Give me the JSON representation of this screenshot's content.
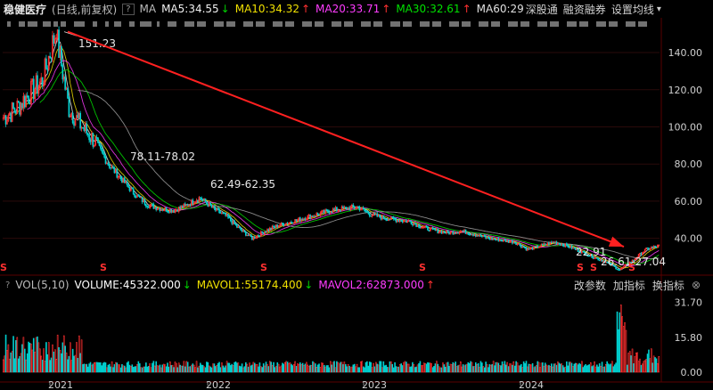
{
  "header": {
    "stock_name": "稳健医疗",
    "mode": "(日线,前复权)",
    "help": "?",
    "ma_label": "MA",
    "ma5": "MA5:34.55",
    "ma10": "MA10:34.32",
    "ma20": "MA20:33.71",
    "ma30": "MA30:32.61",
    "ma60": "MA60:29",
    "link1": "深股通",
    "link2": "融资融券",
    "link3": "设置均线",
    "dropdown": "▾"
  },
  "vol_header": {
    "question": "?",
    "indicator": "VOL(5,10)",
    "volume": "VOLUME:45322.000",
    "mavol1": "MAVOL1:55174.400",
    "mavol2": "MAVOL2:62873.000",
    "btn_params": "改参数",
    "btn_add": "加指标",
    "btn_switch": "换指标",
    "btn_close": "⊗"
  },
  "colors": {
    "background": "#000000",
    "up": "#ff3030",
    "down": "#00d0d0",
    "ma5": "#f0f0f0",
    "ma10": "#f0e000",
    "ma20": "#ff3cff",
    "ma30": "#00e000",
    "ma60": "#a0a0a0",
    "trend_arrow": "#ff2020"
  },
  "chart_data": {
    "type": "candlestick",
    "y_ticks": [
      "140.00",
      "120.00",
      "100.00",
      "80.00",
      "60.00",
      "40.00"
    ],
    "y_tick_values": [
      140,
      120,
      100,
      80,
      60,
      40
    ],
    "ylim": [
      24.5,
      152
    ],
    "x_ticks": [
      "2021",
      "2022",
      "2023",
      "2024"
    ],
    "price_anchors": [
      {
        "label": "2020-09",
        "close": 105
      },
      {
        "label": "2020-10",
        "close": 110
      },
      {
        "label": "2020-11",
        "close": 118
      },
      {
        "label": "2020-12",
        "close": 125
      },
      {
        "label": "2021-01-peak",
        "close": 151.23
      },
      {
        "label": "2021-02",
        "close": 110
      },
      {
        "label": "2021-03",
        "close": 100
      },
      {
        "label": "2021-04",
        "close": 92
      },
      {
        "label": "2021-05",
        "close": 80
      },
      {
        "label": "2021-06",
        "close": 72
      },
      {
        "label": "2021-07",
        "close": 64
      },
      {
        "label": "2021-08",
        "close": 58
      },
      {
        "label": "2021-09",
        "close": 56
      },
      {
        "label": "2021-10",
        "close": 55
      },
      {
        "label": "2021-11",
        "close": 58
      },
      {
        "label": "2021-12",
        "close": 62
      },
      {
        "label": "2022-01",
        "close": 56
      },
      {
        "label": "2022-02",
        "close": 52
      },
      {
        "label": "2022-03",
        "close": 45
      },
      {
        "label": "2022-04",
        "close": 40
      },
      {
        "label": "2022-05",
        "close": 44
      },
      {
        "label": "2022-06",
        "close": 47
      },
      {
        "label": "2022-07",
        "close": 49
      },
      {
        "label": "2022-08",
        "close": 51
      },
      {
        "label": "2022-09",
        "close": 53
      },
      {
        "label": "2022-10",
        "close": 55
      },
      {
        "label": "2022-11",
        "close": 56
      },
      {
        "label": "2022-12",
        "close": 57
      },
      {
        "label": "2023-01",
        "close": 53
      },
      {
        "label": "2023-02",
        "close": 51
      },
      {
        "label": "2023-03",
        "close": 50
      },
      {
        "label": "2023-04",
        "close": 49
      },
      {
        "label": "2023-05",
        "close": 46
      },
      {
        "label": "2023-06",
        "close": 44
      },
      {
        "label": "2023-07",
        "close": 43
      },
      {
        "label": "2023-08",
        "close": 44
      },
      {
        "label": "2023-09",
        "close": 42
      },
      {
        "label": "2023-10",
        "close": 40
      },
      {
        "label": "2023-11",
        "close": 39
      },
      {
        "label": "2023-12",
        "close": 38
      },
      {
        "label": "2024-01",
        "close": 34
      },
      {
        "label": "2024-02",
        "close": 36
      },
      {
        "label": "2024-03",
        "close": 38
      },
      {
        "label": "2024-04",
        "close": 36
      },
      {
        "label": "2024-05",
        "close": 33
      },
      {
        "label": "2024-06",
        "close": 30
      },
      {
        "label": "2024-07",
        "close": 27
      },
      {
        "label": "2024-08",
        "close": 23
      },
      {
        "label": "2024-09",
        "close": 28
      },
      {
        "label": "2024-10",
        "close": 34
      },
      {
        "label": "2024-11",
        "close": 36
      }
    ],
    "annotations": {
      "high": "151.23",
      "range1": "78.11-78.02",
      "range2": "62.49-62.35",
      "low": "22.91",
      "range3": "26.61-27.04"
    },
    "trend_arrow": {
      "from": [
        2021.05,
        151.23
      ],
      "to": [
        2024.75,
        34
      ]
    },
    "volume": {
      "y_ticks": [
        "31.70",
        "15.80",
        "0.00"
      ],
      "y_tick_values": [
        31.7,
        15.8,
        0
      ],
      "ylim": [
        0,
        35.5
      ]
    },
    "markers": [
      "S",
      "S",
      "S",
      "S",
      "S",
      "S",
      "S"
    ]
  }
}
